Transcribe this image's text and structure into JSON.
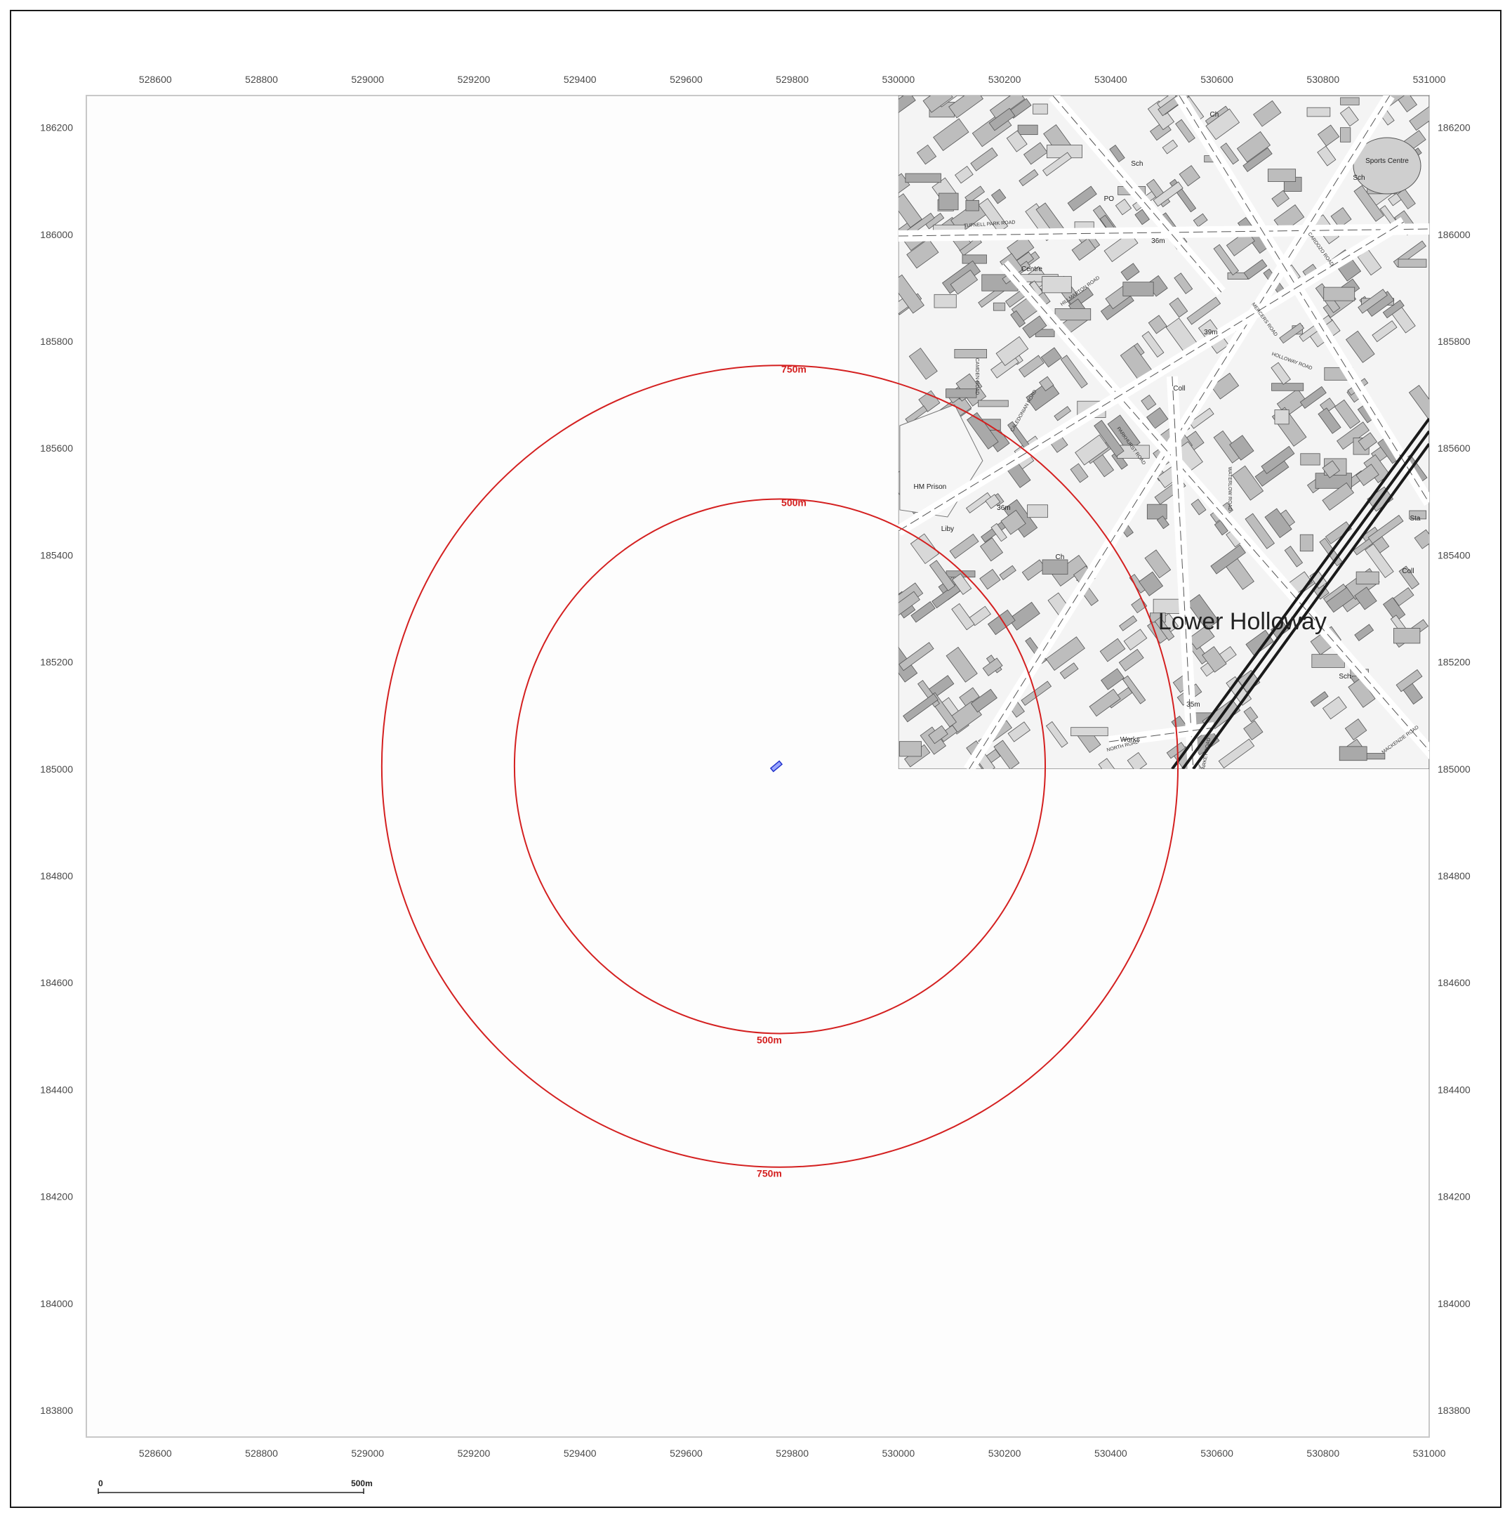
{
  "map": {
    "x_ticks": [
      "528600",
      "528800",
      "529000",
      "529200",
      "529400",
      "529600",
      "529800",
      "530000",
      "530200",
      "530400",
      "530600",
      "530800",
      "531000"
    ],
    "y_ticks": [
      "186200",
      "186000",
      "185800",
      "185600",
      "185400",
      "185200",
      "185000",
      "184800",
      "184600",
      "184400",
      "184200",
      "184000",
      "183800"
    ],
    "easting_range": [
      528470,
      531000
    ],
    "northing_range": [
      183750,
      186260
    ],
    "site": {
      "easting": 529770,
      "northing": 185005
    },
    "buffers": [
      {
        "radius_m": 500,
        "label": "500m",
        "color": "#d42020"
      },
      {
        "radius_m": 750,
        "label": "750m",
        "color": "#d42020"
      }
    ],
    "basemap": {
      "extent_easting": [
        530000,
        531000
      ],
      "extent_northing": [
        185000,
        186260
      ],
      "place_name": "Lower Holloway",
      "labels": [
        "Sports Centre",
        "Sch",
        "PO",
        "Ch",
        "Centre",
        "HM Prison",
        "Liby",
        "Coll",
        "Sch",
        "Works",
        "Sta",
        "Coll",
        "Sch",
        "Ch",
        "35m",
        "36m",
        "39m",
        "36m"
      ],
      "street_labels": [
        "TUFNELL PARK ROAD",
        "HOLLOWAY ROAD",
        "CALEDONIAN ROAD",
        "CAMDEN ROAD",
        "NORTH ROAD",
        "MARKET ROAD",
        "PARKHURST ROAD",
        "MERCERS ROAD",
        "HILLMARTON ROAD",
        "CARDOZO ROAD",
        "MACKENZIE ROAD",
        "WATERLOW ROAD"
      ]
    },
    "scale_bar": {
      "start_label": "0",
      "end_label": "500m"
    }
  }
}
